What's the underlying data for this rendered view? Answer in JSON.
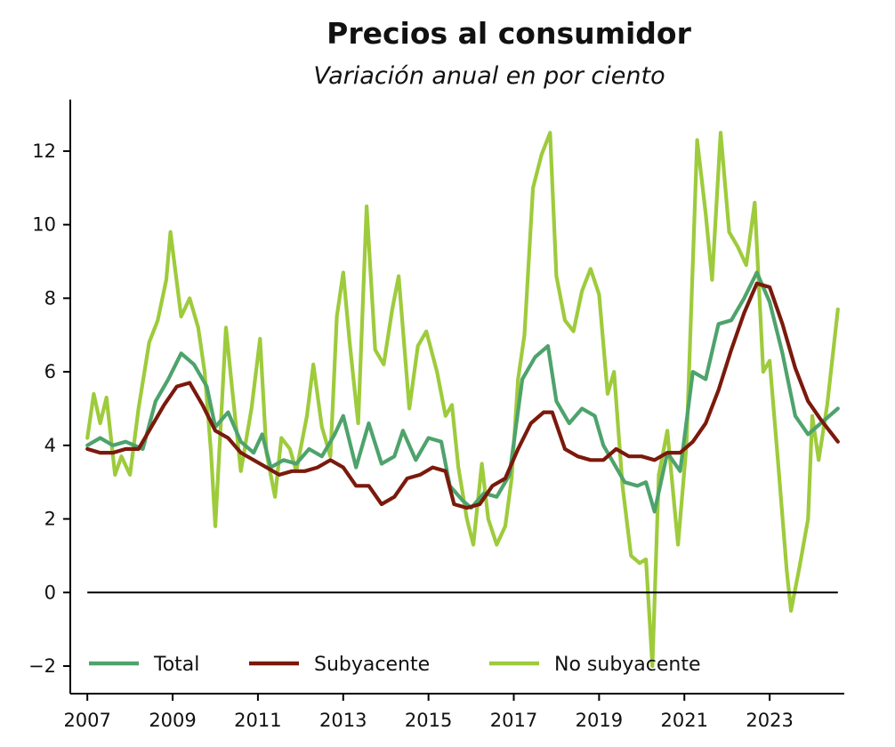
{
  "chart_data": {
    "type": "line",
    "title": "Precios al consumidor",
    "subtitle": "Variación anual en por ciento",
    "xlabel": "",
    "ylabel": "",
    "xlim": [
      2006.6,
      2024.75
    ],
    "ylim": [
      -2.75,
      13.4
    ],
    "x_ticks": [
      "2007",
      "2009",
      "2011",
      "2013",
      "2015",
      "2017",
      "2019",
      "2021",
      "2023"
    ],
    "y_ticks": [
      "−2",
      "0",
      "2",
      "4",
      "6",
      "8",
      "10",
      "12"
    ],
    "legend_position": "bottom",
    "grid": false,
    "reference_line": 0,
    "series": [
      {
        "name": "Total",
        "color": "#4ea36c",
        "points": [
          [
            2007.0,
            4.0
          ],
          [
            2007.3,
            4.2
          ],
          [
            2007.6,
            4.0
          ],
          [
            2007.9,
            4.1
          ],
          [
            2008.3,
            3.9
          ],
          [
            2008.6,
            5.2
          ],
          [
            2008.9,
            5.8
          ],
          [
            2009.2,
            6.5
          ],
          [
            2009.5,
            6.2
          ],
          [
            2009.8,
            5.6
          ],
          [
            2010.0,
            4.5
          ],
          [
            2010.3,
            4.9
          ],
          [
            2010.6,
            4.1
          ],
          [
            2010.9,
            3.8
          ],
          [
            2011.1,
            4.3
          ],
          [
            2011.3,
            3.4
          ],
          [
            2011.6,
            3.6
          ],
          [
            2011.9,
            3.5
          ],
          [
            2012.2,
            3.9
          ],
          [
            2012.5,
            3.7
          ],
          [
            2012.8,
            4.3
          ],
          [
            2013.0,
            4.8
          ],
          [
            2013.3,
            3.4
          ],
          [
            2013.6,
            4.6
          ],
          [
            2013.9,
            3.5
          ],
          [
            2014.2,
            3.7
          ],
          [
            2014.4,
            4.4
          ],
          [
            2014.7,
            3.6
          ],
          [
            2015.0,
            4.2
          ],
          [
            2015.3,
            4.1
          ],
          [
            2015.5,
            2.9
          ],
          [
            2015.8,
            2.5
          ],
          [
            2016.0,
            2.3
          ],
          [
            2016.3,
            2.7
          ],
          [
            2016.6,
            2.6
          ],
          [
            2016.9,
            3.2
          ],
          [
            2017.2,
            5.8
          ],
          [
            2017.5,
            6.4
          ],
          [
            2017.8,
            6.7
          ],
          [
            2018.0,
            5.2
          ],
          [
            2018.3,
            4.6
          ],
          [
            2018.6,
            5.0
          ],
          [
            2018.9,
            4.8
          ],
          [
            2019.1,
            4.0
          ],
          [
            2019.3,
            3.6
          ],
          [
            2019.6,
            3.0
          ],
          [
            2019.9,
            2.9
          ],
          [
            2020.1,
            3.0
          ],
          [
            2020.3,
            2.2
          ],
          [
            2020.6,
            3.8
          ],
          [
            2020.9,
            3.3
          ],
          [
            2021.2,
            6.0
          ],
          [
            2021.5,
            5.8
          ],
          [
            2021.8,
            7.3
          ],
          [
            2022.1,
            7.4
          ],
          [
            2022.4,
            8.0
          ],
          [
            2022.7,
            8.7
          ],
          [
            2023.0,
            7.9
          ],
          [
            2023.3,
            6.5
          ],
          [
            2023.6,
            4.8
          ],
          [
            2023.9,
            4.3
          ],
          [
            2024.2,
            4.6
          ],
          [
            2024.6,
            5.0
          ]
        ]
      },
      {
        "name": "Subyacente",
        "color": "#7a1a0c",
        "points": [
          [
            2007.0,
            3.9
          ],
          [
            2007.3,
            3.8
          ],
          [
            2007.6,
            3.8
          ],
          [
            2007.9,
            3.9
          ],
          [
            2008.2,
            3.9
          ],
          [
            2008.5,
            4.5
          ],
          [
            2008.8,
            5.1
          ],
          [
            2009.1,
            5.6
          ],
          [
            2009.4,
            5.7
          ],
          [
            2009.7,
            5.1
          ],
          [
            2010.0,
            4.4
          ],
          [
            2010.3,
            4.2
          ],
          [
            2010.6,
            3.8
          ],
          [
            2010.9,
            3.6
          ],
          [
            2011.2,
            3.4
          ],
          [
            2011.5,
            3.2
          ],
          [
            2011.8,
            3.3
          ],
          [
            2012.1,
            3.3
          ],
          [
            2012.4,
            3.4
          ],
          [
            2012.7,
            3.6
          ],
          [
            2013.0,
            3.4
          ],
          [
            2013.3,
            2.9
          ],
          [
            2013.6,
            2.9
          ],
          [
            2013.9,
            2.4
          ],
          [
            2014.2,
            2.6
          ],
          [
            2014.5,
            3.1
          ],
          [
            2014.8,
            3.2
          ],
          [
            2015.1,
            3.4
          ],
          [
            2015.4,
            3.3
          ],
          [
            2015.6,
            2.4
          ],
          [
            2015.9,
            2.3
          ],
          [
            2016.2,
            2.4
          ],
          [
            2016.5,
            2.9
          ],
          [
            2016.8,
            3.1
          ],
          [
            2017.1,
            3.9
          ],
          [
            2017.4,
            4.6
          ],
          [
            2017.7,
            4.9
          ],
          [
            2017.9,
            4.9
          ],
          [
            2018.2,
            3.9
          ],
          [
            2018.5,
            3.7
          ],
          [
            2018.8,
            3.6
          ],
          [
            2019.1,
            3.6
          ],
          [
            2019.4,
            3.9
          ],
          [
            2019.7,
            3.7
          ],
          [
            2020.0,
            3.7
          ],
          [
            2020.3,
            3.6
          ],
          [
            2020.6,
            3.8
          ],
          [
            2020.9,
            3.8
          ],
          [
            2021.2,
            4.1
          ],
          [
            2021.5,
            4.6
          ],
          [
            2021.8,
            5.5
          ],
          [
            2022.1,
            6.6
          ],
          [
            2022.4,
            7.6
          ],
          [
            2022.7,
            8.4
          ],
          [
            2023.0,
            8.3
          ],
          [
            2023.3,
            7.3
          ],
          [
            2023.6,
            6.1
          ],
          [
            2023.9,
            5.2
          ],
          [
            2024.2,
            4.7
          ],
          [
            2024.6,
            4.1
          ]
        ]
      },
      {
        "name": "No subyacente",
        "color": "#9ecb3c",
        "points": [
          [
            2007.0,
            4.2
          ],
          [
            2007.15,
            5.4
          ],
          [
            2007.3,
            4.6
          ],
          [
            2007.45,
            5.3
          ],
          [
            2007.65,
            3.2
          ],
          [
            2007.8,
            3.7
          ],
          [
            2008.0,
            3.2
          ],
          [
            2008.2,
            5.0
          ],
          [
            2008.45,
            6.8
          ],
          [
            2008.65,
            7.4
          ],
          [
            2008.85,
            8.5
          ],
          [
            2008.95,
            9.8
          ],
          [
            2009.2,
            7.5
          ],
          [
            2009.4,
            8.0
          ],
          [
            2009.6,
            7.2
          ],
          [
            2009.75,
            6.0
          ],
          [
            2009.9,
            3.8
          ],
          [
            2010.0,
            1.8
          ],
          [
            2010.25,
            7.2
          ],
          [
            2010.4,
            5.5
          ],
          [
            2010.6,
            3.3
          ],
          [
            2010.85,
            5.0
          ],
          [
            2011.05,
            6.9
          ],
          [
            2011.2,
            3.8
          ],
          [
            2011.4,
            2.6
          ],
          [
            2011.55,
            4.2
          ],
          [
            2011.75,
            3.9
          ],
          [
            2011.9,
            3.3
          ],
          [
            2012.15,
            4.8
          ],
          [
            2012.3,
            6.2
          ],
          [
            2012.5,
            4.5
          ],
          [
            2012.7,
            3.7
          ],
          [
            2012.85,
            7.5
          ],
          [
            2013.0,
            8.7
          ],
          [
            2013.15,
            6.8
          ],
          [
            2013.35,
            4.6
          ],
          [
            2013.55,
            10.5
          ],
          [
            2013.75,
            6.6
          ],
          [
            2013.95,
            6.2
          ],
          [
            2014.15,
            7.7
          ],
          [
            2014.3,
            8.6
          ],
          [
            2014.55,
            5.0
          ],
          [
            2014.75,
            6.7
          ],
          [
            2014.95,
            7.1
          ],
          [
            2015.2,
            6.0
          ],
          [
            2015.4,
            4.8
          ],
          [
            2015.55,
            5.1
          ],
          [
            2015.7,
            3.4
          ],
          [
            2015.9,
            2.0
          ],
          [
            2016.05,
            1.3
          ],
          [
            2016.25,
            3.5
          ],
          [
            2016.4,
            2.0
          ],
          [
            2016.6,
            1.3
          ],
          [
            2016.8,
            1.8
          ],
          [
            2016.95,
            3.1
          ],
          [
            2017.1,
            5.8
          ],
          [
            2017.25,
            7.0
          ],
          [
            2017.45,
            11.0
          ],
          [
            2017.65,
            11.9
          ],
          [
            2017.85,
            12.5
          ],
          [
            2018.0,
            8.6
          ],
          [
            2018.2,
            7.4
          ],
          [
            2018.4,
            7.1
          ],
          [
            2018.6,
            8.2
          ],
          [
            2018.8,
            8.8
          ],
          [
            2019.0,
            8.1
          ],
          [
            2019.2,
            5.4
          ],
          [
            2019.35,
            6.0
          ],
          [
            2019.55,
            2.9
          ],
          [
            2019.75,
            1.0
          ],
          [
            2019.95,
            0.8
          ],
          [
            2020.1,
            0.9
          ],
          [
            2020.25,
            -2.0
          ],
          [
            2020.4,
            3.2
          ],
          [
            2020.6,
            4.4
          ],
          [
            2020.85,
            1.3
          ],
          [
            2021.05,
            4.0
          ],
          [
            2021.3,
            12.3
          ],
          [
            2021.5,
            10.3
          ],
          [
            2021.65,
            8.5
          ],
          [
            2021.85,
            12.5
          ],
          [
            2022.05,
            9.8
          ],
          [
            2022.25,
            9.4
          ],
          [
            2022.45,
            8.9
          ],
          [
            2022.65,
            10.6
          ],
          [
            2022.85,
            6.0
          ],
          [
            2023.0,
            6.3
          ],
          [
            2023.2,
            3.5
          ],
          [
            2023.4,
            0.6
          ],
          [
            2023.5,
            -0.5
          ],
          [
            2023.7,
            0.7
          ],
          [
            2023.9,
            2.0
          ],
          [
            2024.0,
            4.8
          ],
          [
            2024.15,
            3.6
          ],
          [
            2024.35,
            5.1
          ],
          [
            2024.6,
            7.7
          ]
        ]
      }
    ]
  }
}
